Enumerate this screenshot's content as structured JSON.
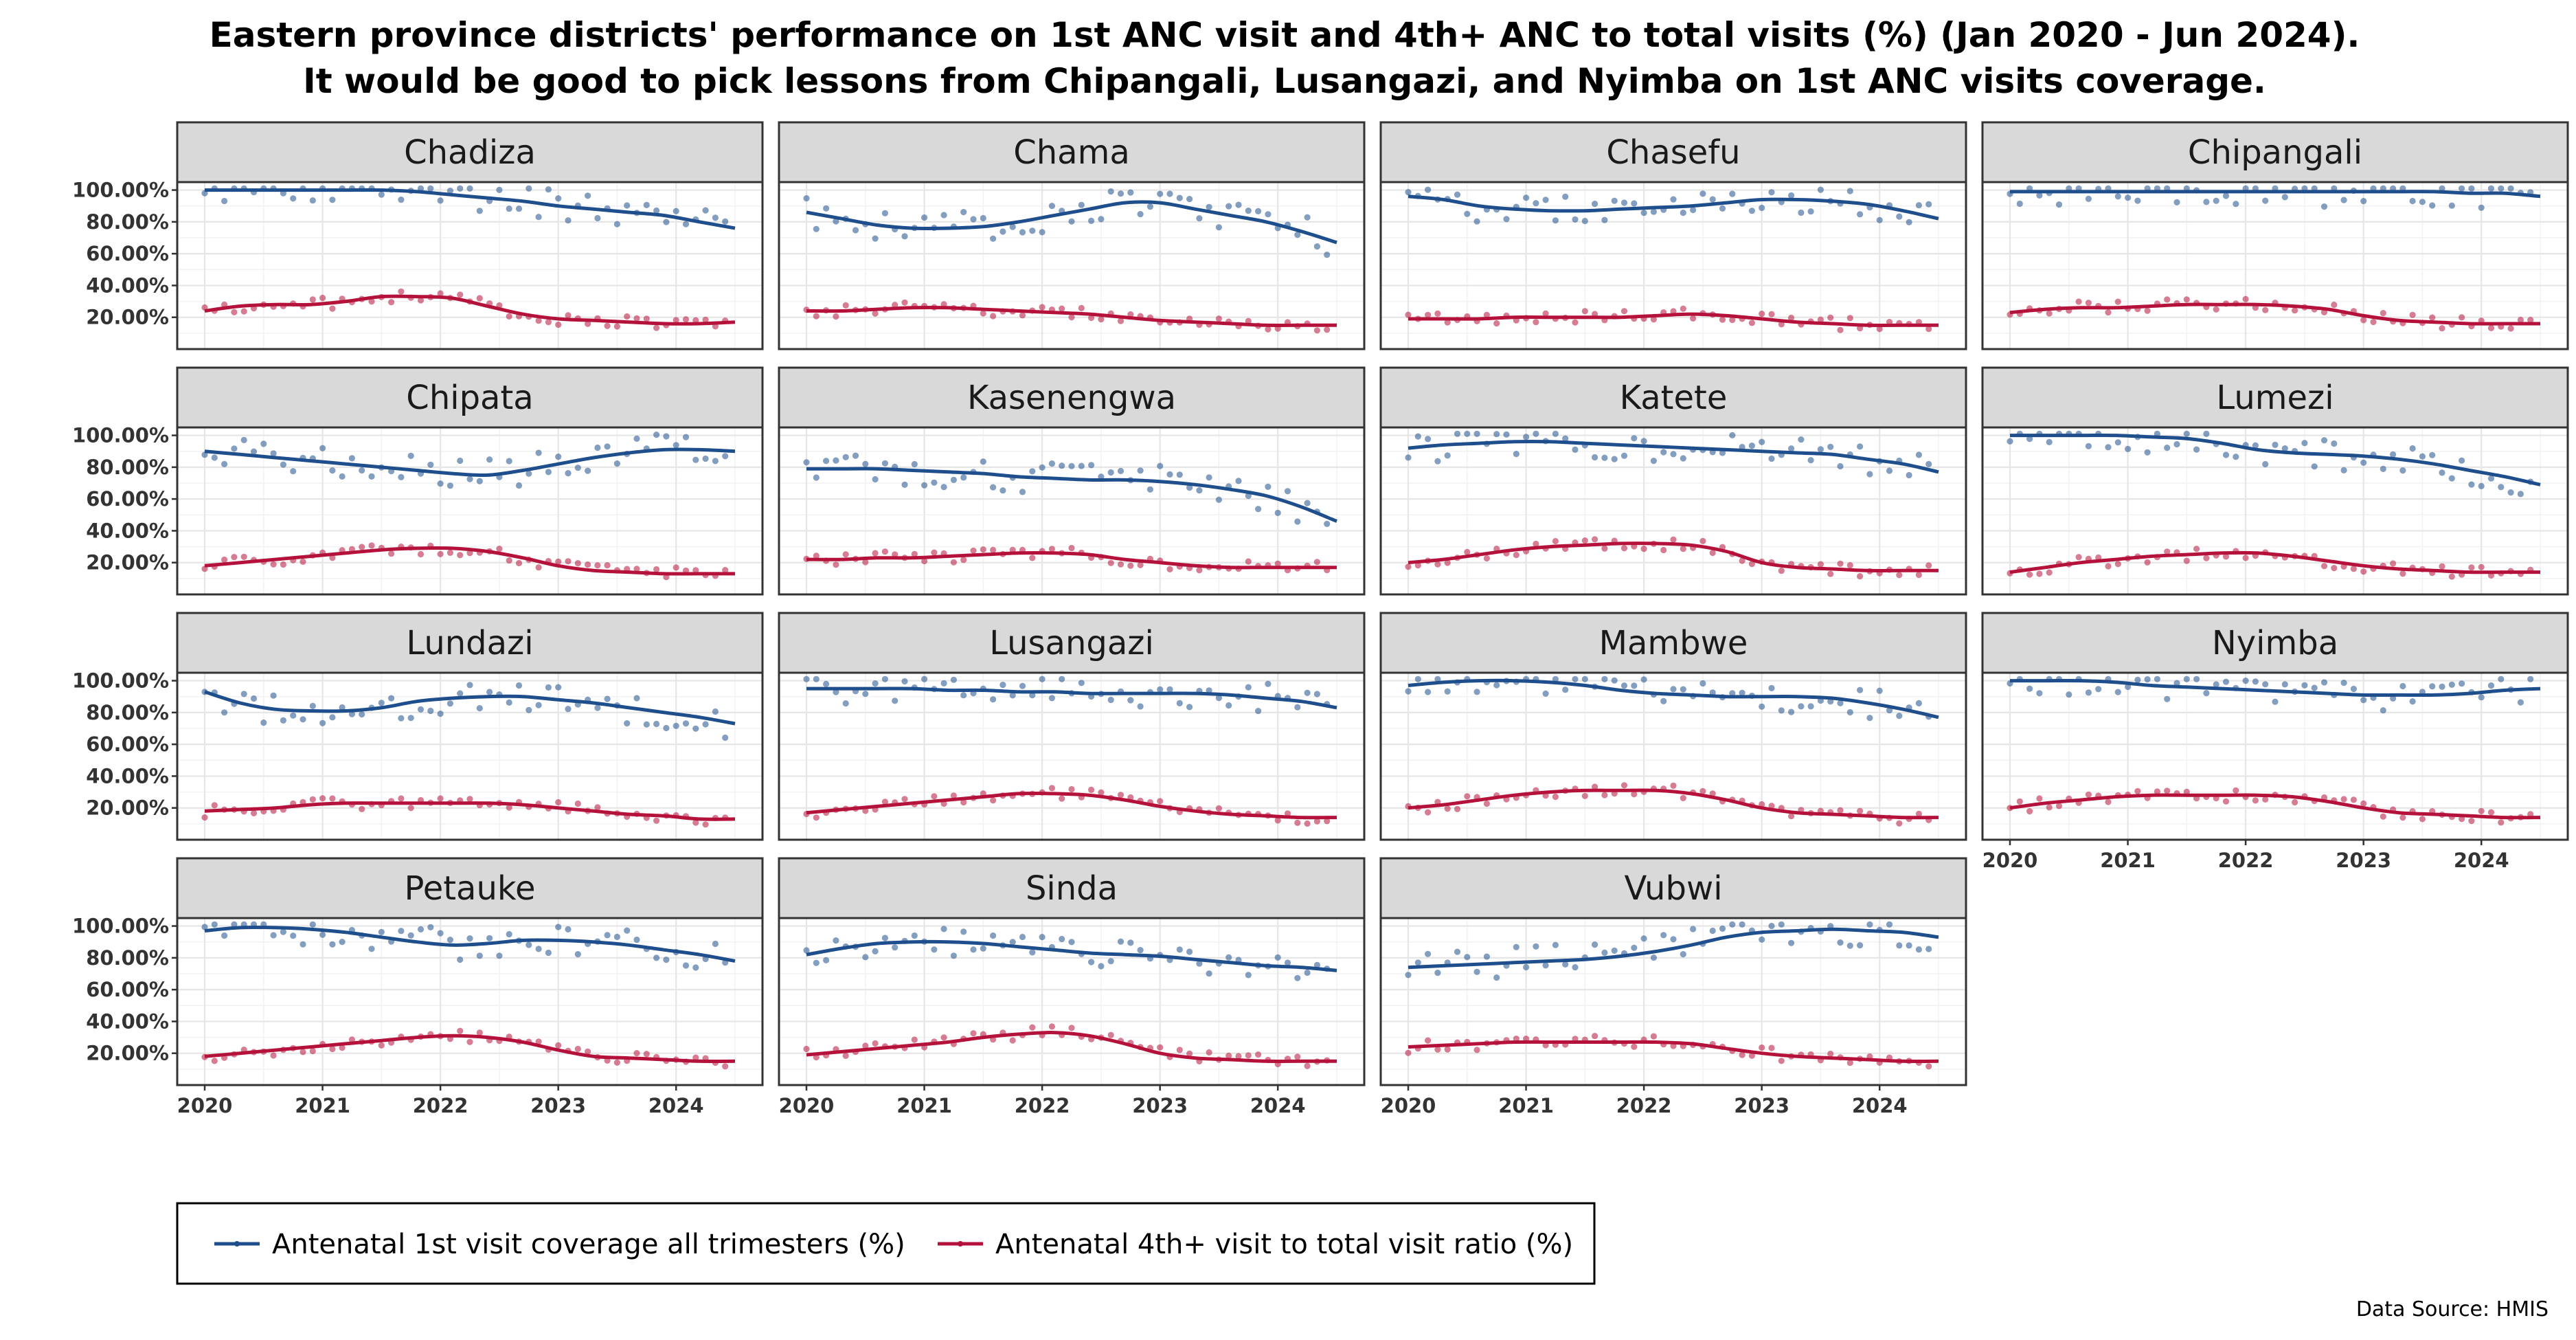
{
  "chart_data": {
    "type": "scatter",
    "title": "Eastern province districts' performance on 1st ANC visit and 4th+ ANC to total visits (%) (Jan 2020 - Jun 2024).",
    "subtitle": "It would be good to pick lessons from Chipangali, Lusangazi, and Nyimba on 1st ANC visits coverage.",
    "caption": "Data Source: HMIS",
    "x_ticks": [
      "2020",
      "2021",
      "2022",
      "2023",
      "2024"
    ],
    "y_ticks": [
      "20.00%",
      "40.00%",
      "60.00%",
      "80.00%",
      "100.00%"
    ],
    "xlim": [
      2020,
      2024.5
    ],
    "ylim": [
      0,
      105
    ],
    "grid": true,
    "legend_position": "bottom",
    "series_meta": [
      {
        "name": "Antenatal 1st visit coverage all trimesters  (%)",
        "color": "#1f4e8c"
      },
      {
        "name": "Antenatal 4th+ visit to total visit ratio (%)",
        "color": "#b5123b"
      }
    ],
    "panels": [
      {
        "name": "Chadiza",
        "s1": [
          100,
          100,
          100,
          100,
          100,
          100,
          99,
          97,
          95,
          93,
          90,
          88,
          86,
          84,
          80,
          76
        ],
        "s2": [
          24,
          27,
          28,
          28,
          30,
          33,
          33,
          32,
          27,
          22,
          19,
          18,
          17,
          16,
          16,
          17
        ]
      },
      {
        "name": "Chama",
        "s1": [
          86,
          82,
          78,
          76,
          76,
          77,
          80,
          84,
          88,
          92,
          92,
          88,
          84,
          80,
          74,
          67
        ],
        "s2": [
          24,
          24,
          25,
          26,
          26,
          25,
          24,
          23,
          22,
          20,
          18,
          17,
          16,
          15,
          15,
          15
        ]
      },
      {
        "name": "Chasefu",
        "s1": [
          96,
          94,
          90,
          88,
          87,
          87,
          88,
          89,
          90,
          92,
          94,
          94,
          93,
          91,
          87,
          82
        ],
        "s2": [
          19,
          19,
          19,
          20,
          20,
          20,
          20,
          21,
          22,
          21,
          19,
          17,
          16,
          15,
          15,
          15
        ]
      },
      {
        "name": "Chipangali",
        "s1": [
          99,
          99,
          99,
          99,
          99,
          99,
          99,
          99,
          99,
          99,
          99,
          99,
          99,
          98,
          98,
          96
        ],
        "s2": [
          23,
          25,
          26,
          26,
          27,
          28,
          28,
          28,
          27,
          25,
          21,
          18,
          17,
          16,
          16,
          16
        ]
      },
      {
        "name": "Chipata",
        "s1": [
          90,
          88,
          86,
          84,
          82,
          80,
          78,
          76,
          75,
          78,
          82,
          86,
          89,
          91,
          91,
          90
        ],
        "s2": [
          18,
          20,
          22,
          24,
          26,
          28,
          29,
          29,
          27,
          23,
          18,
          15,
          14,
          13,
          13,
          13
        ]
      },
      {
        "name": "Kasenengwa",
        "s1": [
          79,
          79,
          79,
          78,
          77,
          76,
          74,
          73,
          72,
          72,
          71,
          69,
          66,
          62,
          55,
          46
        ],
        "s2": [
          22,
          22,
          23,
          23,
          24,
          25,
          26,
          26,
          25,
          22,
          20,
          18,
          17,
          17,
          17,
          17
        ]
      },
      {
        "name": "Katete",
        "s1": [
          92,
          94,
          95,
          96,
          96,
          95,
          94,
          93,
          92,
          91,
          90,
          89,
          88,
          85,
          82,
          77
        ],
        "s2": [
          20,
          22,
          25,
          28,
          30,
          31,
          32,
          32,
          31,
          27,
          20,
          17,
          16,
          15,
          15,
          15
        ]
      },
      {
        "name": "Lumezi",
        "s1": [
          100,
          100,
          100,
          100,
          99,
          98,
          95,
          91,
          89,
          88,
          87,
          85,
          82,
          78,
          74,
          69
        ],
        "s2": [
          14,
          17,
          20,
          22,
          24,
          25,
          26,
          26,
          24,
          21,
          18,
          16,
          15,
          14,
          14,
          14
        ]
      },
      {
        "name": "Lundazi",
        "s1": [
          93,
          86,
          82,
          81,
          81,
          83,
          87,
          89,
          90,
          90,
          88,
          86,
          83,
          80,
          77,
          73
        ],
        "s2": [
          18,
          19,
          20,
          22,
          23,
          23,
          23,
          23,
          23,
          22,
          20,
          18,
          16,
          15,
          13,
          13
        ]
      },
      {
        "name": "Lusangazi",
        "s1": [
          95,
          95,
          95,
          95,
          94,
          94,
          93,
          93,
          92,
          92,
          92,
          92,
          91,
          89,
          87,
          83
        ],
        "s2": [
          17,
          19,
          21,
          23,
          25,
          27,
          29,
          29,
          28,
          25,
          21,
          18,
          16,
          15,
          14,
          14
        ]
      },
      {
        "name": "Mambwe",
        "s1": [
          97,
          99,
          100,
          100,
          99,
          97,
          94,
          92,
          91,
          90,
          90,
          90,
          89,
          86,
          82,
          77
        ],
        "s2": [
          20,
          22,
          25,
          28,
          30,
          31,
          31,
          31,
          29,
          25,
          20,
          17,
          16,
          15,
          14,
          14
        ]
      },
      {
        "name": "Nyimba",
        "s1": [
          100,
          100,
          100,
          99,
          97,
          96,
          95,
          94,
          93,
          92,
          91,
          91,
          91,
          92,
          94,
          95
        ],
        "s2": [
          20,
          23,
          25,
          27,
          28,
          28,
          28,
          28,
          27,
          24,
          20,
          17,
          16,
          15,
          14,
          14
        ]
      },
      {
        "name": "Petauke",
        "s1": [
          97,
          99,
          99,
          98,
          96,
          93,
          90,
          88,
          89,
          91,
          91,
          90,
          88,
          85,
          82,
          78
        ],
        "s2": [
          18,
          20,
          22,
          24,
          26,
          28,
          30,
          31,
          30,
          27,
          22,
          18,
          17,
          16,
          15,
          15
        ]
      },
      {
        "name": "Sinda",
        "s1": [
          82,
          86,
          89,
          90,
          90,
          89,
          87,
          85,
          83,
          82,
          81,
          79,
          77,
          75,
          74,
          72
        ],
        "s2": [
          19,
          21,
          23,
          25,
          27,
          30,
          32,
          33,
          31,
          26,
          20,
          17,
          16,
          15,
          15,
          15
        ]
      },
      {
        "name": "Vubwi",
        "s1": [
          74,
          75,
          76,
          77,
          78,
          79,
          81,
          84,
          88,
          93,
          96,
          97,
          98,
          97,
          96,
          93
        ],
        "s2": [
          24,
          25,
          26,
          27,
          27,
          27,
          27,
          27,
          26,
          23,
          20,
          18,
          17,
          16,
          15,
          15
        ]
      }
    ]
  }
}
